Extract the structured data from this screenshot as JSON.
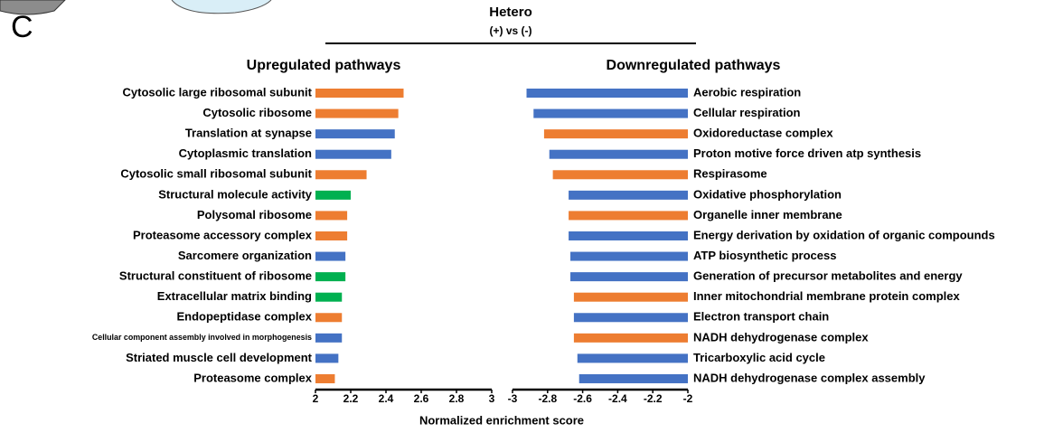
{
  "panel_label": "C",
  "title": "Hetero",
  "subtitle": "(+) vs (-)",
  "xlabel": "Normalized enrichment score",
  "chart_data": [
    {
      "type": "barh",
      "title": "Upregulated pathways",
      "categories": [
        "Cytosolic large ribosomal subunit",
        "Cytosolic ribosome",
        "Translation at synapse",
        "Cytoplasmic translation",
        "Cytosolic small ribosomal subunit",
        "Structural molecule activity",
        "Polysomal ribosome",
        "Proteasome accessory complex",
        "Sarcomere organization",
        "Structural constituent of ribosome",
        "Extracellular matrix binding",
        "Endopeptidase complex",
        "Cellular component assembly involved in morphogenesis",
        "Striated muscle cell development",
        "Proteasome complex"
      ],
      "values": [
        2.5,
        2.47,
        2.45,
        2.43,
        2.29,
        2.2,
        2.18,
        2.18,
        2.17,
        2.17,
        2.15,
        2.15,
        2.15,
        2.13,
        2.11
      ],
      "colors": [
        "#ed7d31",
        "#ed7d31",
        "#4472c4",
        "#4472c4",
        "#ed7d31",
        "#00b050",
        "#ed7d31",
        "#ed7d31",
        "#4472c4",
        "#00b050",
        "#00b050",
        "#ed7d31",
        "#4472c4",
        "#4472c4",
        "#ed7d31"
      ],
      "xlim": [
        2,
        3
      ],
      "xticks": [
        2,
        2.2,
        2.4,
        2.6,
        2.8,
        3
      ]
    },
    {
      "type": "barh",
      "title": "Downregulated pathways",
      "categories": [
        "Aerobic respiration",
        "Cellular respiration",
        "Oxidoreductase complex",
        "Proton motive force driven atp synthesis",
        "Respirasome",
        "Oxidative phosphorylation",
        "Organelle inner membrane",
        "Energy derivation by oxidation of organic compounds",
        "ATP biosynthetic process",
        "Generation of precursor metabolites and energy",
        "Inner mitochondrial membrane protein complex",
        "Electron transport chain",
        "NADH dehydrogenase complex",
        "Tricarboxylic acid cycle",
        "NADH dehydrogenase complex assembly"
      ],
      "values": [
        -2.92,
        -2.88,
        -2.82,
        -2.79,
        -2.77,
        -2.68,
        -2.68,
        -2.68,
        -2.67,
        -2.67,
        -2.65,
        -2.65,
        -2.65,
        -2.63,
        -2.62
      ],
      "colors": [
        "#4472c4",
        "#4472c4",
        "#ed7d31",
        "#4472c4",
        "#ed7d31",
        "#4472c4",
        "#ed7d31",
        "#4472c4",
        "#4472c4",
        "#4472c4",
        "#ed7d31",
        "#4472c4",
        "#ed7d31",
        "#4472c4",
        "#4472c4"
      ],
      "xlim": [
        -3,
        -2
      ],
      "xticks": [
        -3,
        -2.8,
        -2.6,
        -2.4,
        -2.2,
        -2
      ]
    }
  ]
}
